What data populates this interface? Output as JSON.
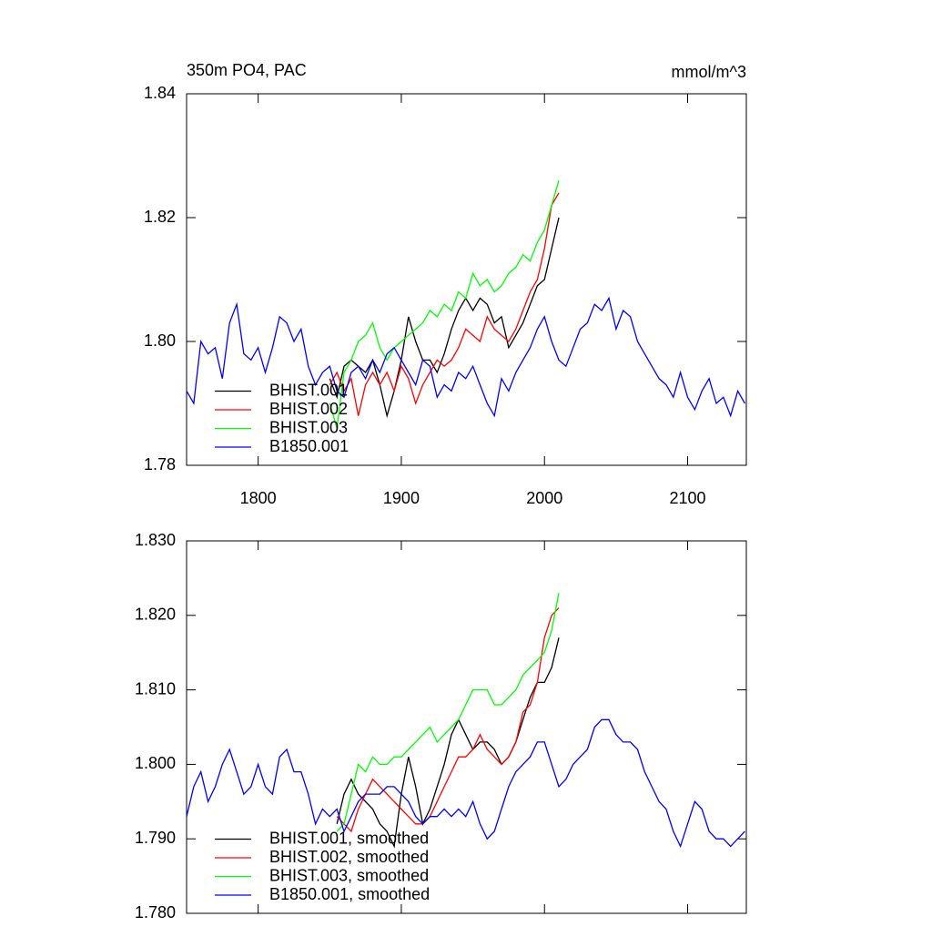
{
  "chart_data": [
    {
      "type": "line",
      "title": "350m PO4, PAC",
      "units": "mmol/m^3",
      "legend": "lower left",
      "x": [
        1750,
        1755,
        1760,
        1765,
        1770,
        1775,
        1780,
        1785,
        1790,
        1795,
        1800,
        1805,
        1810,
        1815,
        1820,
        1825,
        1830,
        1835,
        1840,
        1845,
        1850,
        1855,
        1860,
        1865,
        1870,
        1875,
        1880,
        1885,
        1890,
        1895,
        1900,
        1905,
        1910,
        1915,
        1920,
        1925,
        1930,
        1935,
        1940,
        1945,
        1950,
        1955,
        1960,
        1965,
        1970,
        1975,
        1980,
        1985,
        1990,
        1995,
        2000,
        2005,
        2010,
        2015,
        2020,
        2025,
        2030,
        2035,
        2040,
        2045,
        2050,
        2055,
        2060,
        2065,
        2070,
        2075,
        2080,
        2085,
        2090,
        2095,
        2100,
        2105,
        2110,
        2115,
        2120,
        2125,
        2130,
        2135,
        2140
      ],
      "xlim": [
        1750,
        2141
      ],
      "xticks": [
        1800,
        1900,
        2000,
        2100
      ],
      "ylim": [
        1.78,
        1.84
      ],
      "yticks": [
        1.78,
        {
          "value": 1.8,
          "label": "1.80"
        },
        1.82,
        1.84
      ],
      "series": [
        {
          "name": "BHIST.001",
          "color": "#000000",
          "values": [
            null,
            null,
            null,
            null,
            null,
            null,
            null,
            null,
            null,
            null,
            null,
            null,
            null,
            null,
            null,
            null,
            null,
            null,
            null,
            null,
            1.794,
            1.791,
            1.796,
            1.797,
            1.796,
            1.795,
            1.797,
            1.793,
            1.788,
            1.792,
            1.797,
            1.804,
            1.8,
            1.797,
            1.797,
            1.795,
            1.798,
            1.802,
            1.805,
            1.807,
            1.805,
            1.807,
            1.806,
            1.803,
            1.804,
            1.799,
            1.801,
            1.803,
            1.806,
            1.809,
            1.81,
            1.815,
            1.82,
            null,
            null,
            null,
            null,
            null,
            null,
            null,
            null,
            null,
            null,
            null,
            null,
            null,
            null,
            null,
            null,
            null,
            null,
            null,
            null,
            null,
            null,
            null,
            null,
            null,
            null
          ]
        },
        {
          "name": "BHIST.002",
          "color": "#ff0000",
          "values": [
            null,
            null,
            null,
            null,
            null,
            null,
            null,
            null,
            null,
            null,
            null,
            null,
            null,
            null,
            null,
            null,
            null,
            null,
            null,
            null,
            1.793,
            1.795,
            1.792,
            1.794,
            1.788,
            1.793,
            1.795,
            1.793,
            1.795,
            1.792,
            1.796,
            1.794,
            1.79,
            1.793,
            1.795,
            1.797,
            1.796,
            1.797,
            1.799,
            1.802,
            1.801,
            1.8,
            1.804,
            1.802,
            1.801,
            1.8,
            1.802,
            1.805,
            1.808,
            1.81,
            1.815,
            1.822,
            1.824,
            null,
            null,
            null,
            null,
            null,
            null,
            null,
            null,
            null,
            null,
            null,
            null,
            null,
            null,
            null,
            null,
            null,
            null,
            null,
            null,
            null,
            null,
            null,
            null,
            null,
            null
          ]
        },
        {
          "name": "BHIST.003",
          "color": "#00ff00",
          "values": [
            null,
            null,
            null,
            null,
            null,
            null,
            null,
            null,
            null,
            null,
            null,
            null,
            null,
            null,
            null,
            null,
            null,
            null,
            null,
            null,
            1.79,
            1.786,
            1.795,
            1.797,
            1.8,
            1.801,
            1.803,
            1.799,
            1.797,
            1.799,
            1.8,
            1.801,
            1.802,
            1.803,
            1.805,
            1.804,
            1.806,
            1.805,
            1.808,
            1.807,
            1.811,
            1.809,
            1.81,
            1.808,
            1.809,
            1.811,
            1.812,
            1.814,
            1.813,
            1.816,
            1.818,
            1.822,
            1.826,
            null,
            null,
            null,
            null,
            null,
            null,
            null,
            null,
            null,
            null,
            null,
            null,
            null,
            null,
            null,
            null,
            null,
            null,
            null,
            null,
            null,
            null,
            null,
            null,
            null,
            null
          ]
        },
        {
          "name": "B1850.001",
          "color": "#0000ff",
          "values": [
            1.792,
            1.79,
            1.8,
            1.798,
            1.799,
            1.794,
            1.803,
            1.806,
            1.798,
            1.797,
            1.799,
            1.795,
            1.799,
            1.804,
            1.803,
            1.8,
            1.802,
            1.796,
            1.793,
            1.795,
            1.796,
            1.792,
            1.791,
            1.795,
            1.796,
            1.794,
            1.797,
            1.795,
            1.798,
            1.799,
            1.797,
            1.795,
            1.793,
            1.797,
            1.796,
            1.791,
            1.793,
            1.792,
            1.795,
            1.794,
            1.796,
            1.793,
            1.79,
            1.788,
            1.794,
            1.792,
            1.795,
            1.797,
            1.799,
            1.802,
            1.804,
            1.8,
            1.797,
            1.796,
            1.799,
            1.802,
            1.803,
            1.806,
            1.805,
            1.807,
            1.802,
            1.805,
            1.804,
            1.8,
            1.798,
            1.796,
            1.794,
            1.793,
            1.791,
            1.795,
            1.791,
            1.789,
            1.792,
            1.794,
            1.79,
            1.791,
            1.788,
            1.792,
            1.79
          ]
        }
      ]
    },
    {
      "type": "line",
      "legend": "lower left",
      "x": [
        1750,
        1755,
        1760,
        1765,
        1770,
        1775,
        1780,
        1785,
        1790,
        1795,
        1800,
        1805,
        1810,
        1815,
        1820,
        1825,
        1830,
        1835,
        1840,
        1845,
        1850,
        1855,
        1860,
        1865,
        1870,
        1875,
        1880,
        1885,
        1890,
        1895,
        1900,
        1905,
        1910,
        1915,
        1920,
        1925,
        1930,
        1935,
        1940,
        1945,
        1950,
        1955,
        1960,
        1965,
        1970,
        1975,
        1980,
        1985,
        1990,
        1995,
        2000,
        2005,
        2010,
        2015,
        2020,
        2025,
        2030,
        2035,
        2040,
        2045,
        2050,
        2055,
        2060,
        2065,
        2070,
        2075,
        2080,
        2085,
        2090,
        2095,
        2100,
        2105,
        2110,
        2115,
        2120,
        2125,
        2130,
        2135,
        2140
      ],
      "xlim": [
        1750,
        2141
      ],
      "xticks": [
        1800,
        1900,
        2000,
        2100
      ],
      "ylim": [
        1.78,
        1.83
      ],
      "yticks": [
        {
          "value": 1.78,
          "label": "1.780"
        },
        {
          "value": 1.79,
          "label": "1.790"
        },
        {
          "value": 1.8,
          "label": "1.800"
        },
        {
          "value": 1.81,
          "label": "1.810"
        },
        {
          "value": 1.82,
          "label": "1.820"
        },
        {
          "value": 1.83,
          "label": "1.830"
        }
      ],
      "series": [
        {
          "name": "BHIST.001, smoothed",
          "color": "#000000",
          "values": [
            null,
            null,
            null,
            null,
            null,
            null,
            null,
            null,
            null,
            null,
            null,
            null,
            null,
            null,
            null,
            null,
            null,
            null,
            null,
            null,
            null,
            1.792,
            1.796,
            1.798,
            1.796,
            1.795,
            1.794,
            1.792,
            1.791,
            1.789,
            1.796,
            1.801,
            1.797,
            1.792,
            1.794,
            1.797,
            1.8,
            1.804,
            1.806,
            1.804,
            1.802,
            1.803,
            1.803,
            1.802,
            1.8,
            1.801,
            1.803,
            1.806,
            1.809,
            1.811,
            1.811,
            1.813,
            1.817,
            null,
            null,
            null,
            null,
            null,
            null,
            null,
            null,
            null,
            null,
            null,
            null,
            null,
            null,
            null,
            null,
            null,
            null,
            null,
            null,
            null,
            null,
            null,
            null,
            null,
            null
          ]
        },
        {
          "name": "BHIST.002, smoothed",
          "color": "#ff0000",
          "values": [
            null,
            null,
            null,
            null,
            null,
            null,
            null,
            null,
            null,
            null,
            null,
            null,
            null,
            null,
            null,
            null,
            null,
            null,
            null,
            null,
            null,
            1.793,
            1.792,
            1.791,
            1.794,
            1.796,
            1.798,
            1.797,
            1.796,
            1.795,
            1.794,
            1.793,
            1.792,
            1.792,
            1.793,
            1.795,
            1.797,
            1.799,
            1.801,
            1.801,
            1.802,
            1.804,
            1.802,
            1.801,
            1.8,
            1.801,
            1.803,
            1.807,
            1.808,
            1.811,
            1.817,
            1.82,
            1.821,
            null,
            null,
            null,
            null,
            null,
            null,
            null,
            null,
            null,
            null,
            null,
            null,
            null,
            null,
            null,
            null,
            null,
            null,
            null,
            null,
            null,
            null,
            null,
            null,
            null,
            null
          ]
        },
        {
          "name": "BHIST.003, smoothed",
          "color": "#00ff00",
          "values": [
            null,
            null,
            null,
            null,
            null,
            null,
            null,
            null,
            null,
            null,
            null,
            null,
            null,
            null,
            null,
            null,
            null,
            null,
            null,
            null,
            null,
            1.791,
            1.792,
            1.796,
            1.8,
            1.799,
            1.801,
            1.8,
            1.8,
            1.801,
            1.801,
            1.802,
            1.803,
            1.804,
            1.805,
            1.803,
            1.804,
            1.805,
            1.806,
            1.808,
            1.81,
            1.81,
            1.81,
            1.808,
            1.808,
            1.809,
            1.81,
            1.812,
            1.813,
            1.814,
            1.815,
            1.818,
            1.823,
            null,
            null,
            null,
            null,
            null,
            null,
            null,
            null,
            null,
            null,
            null,
            null,
            null,
            null,
            null,
            null,
            null,
            null,
            null,
            null,
            null,
            null,
            null,
            null,
            null,
            null
          ]
        },
        {
          "name": "B1850.001, smoothed",
          "color": "#0000ff",
          "values": [
            1.793,
            1.797,
            1.799,
            1.795,
            1.797,
            1.8,
            1.802,
            1.799,
            1.796,
            1.797,
            1.8,
            1.797,
            1.796,
            1.801,
            1.802,
            1.799,
            1.799,
            1.796,
            1.792,
            1.794,
            1.793,
            1.794,
            1.791,
            1.793,
            1.795,
            1.796,
            1.796,
            1.796,
            1.797,
            1.797,
            1.796,
            1.795,
            1.793,
            1.792,
            1.793,
            1.793,
            1.794,
            1.793,
            1.794,
            1.793,
            1.795,
            1.792,
            1.79,
            1.791,
            1.794,
            1.797,
            1.799,
            1.8,
            1.801,
            1.803,
            1.803,
            1.8,
            1.797,
            1.798,
            1.8,
            1.801,
            1.802,
            1.805,
            1.806,
            1.806,
            1.804,
            1.803,
            1.803,
            1.802,
            1.799,
            1.797,
            1.795,
            1.794,
            1.791,
            1.789,
            1.792,
            1.795,
            1.794,
            1.791,
            1.79,
            1.79,
            1.789,
            1.79,
            1.791
          ]
        }
      ]
    }
  ]
}
